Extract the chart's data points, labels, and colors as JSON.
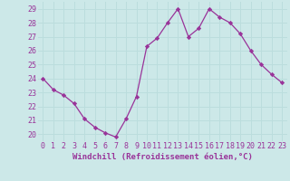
{
  "x": [
    0,
    1,
    2,
    3,
    4,
    5,
    6,
    7,
    8,
    9,
    10,
    11,
    12,
    13,
    14,
    15,
    16,
    17,
    18,
    19,
    20,
    21,
    22,
    23
  ],
  "y": [
    24.0,
    23.2,
    22.8,
    22.2,
    21.1,
    20.5,
    20.1,
    19.8,
    21.1,
    22.7,
    26.3,
    26.9,
    28.0,
    29.0,
    27.0,
    27.6,
    29.0,
    28.4,
    28.0,
    27.2,
    26.0,
    25.0,
    24.3,
    23.7
  ],
  "line_color": "#993399",
  "marker": "D",
  "marker_size": 2.2,
  "bg_color": "#cce8e8",
  "grid_color": "#bbdddd",
  "xlabel": "Windchill (Refroidissement éolien,°C)",
  "xlabel_color": "#993399",
  "ylabel_ticks": [
    20,
    21,
    22,
    23,
    24,
    25,
    26,
    27,
    28,
    29
  ],
  "xlim": [
    -0.5,
    23.5
  ],
  "ylim": [
    19.5,
    29.5
  ],
  "tick_label_color": "#993399",
  "axis_label_fontsize": 6.5,
  "tick_fontsize": 6.0,
  "linewidth": 0.9
}
